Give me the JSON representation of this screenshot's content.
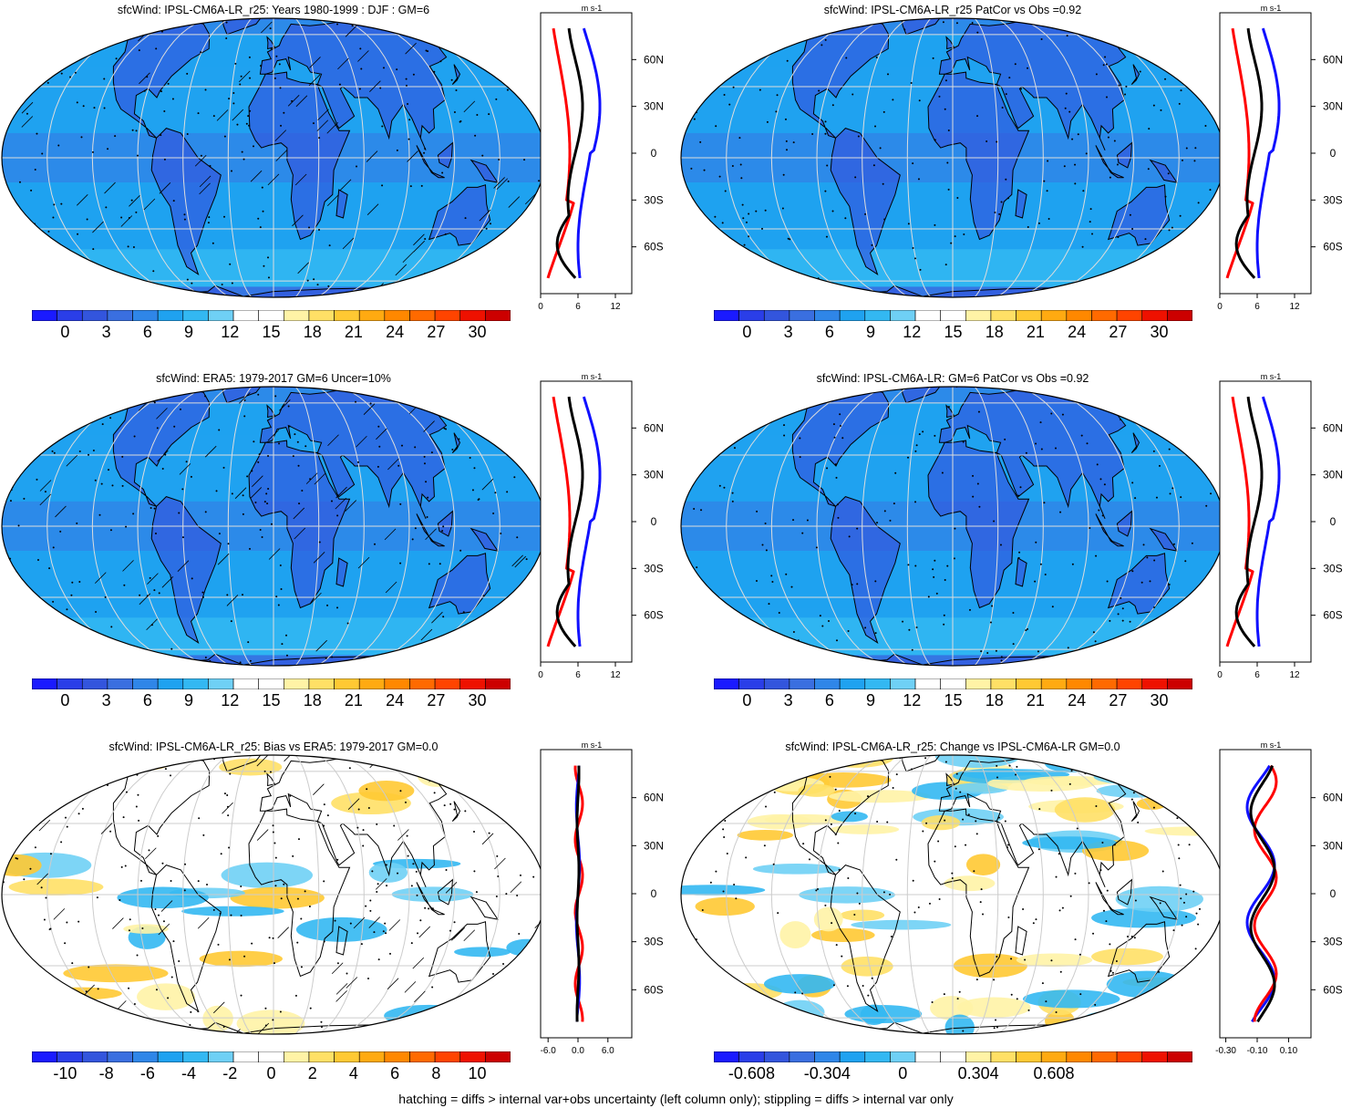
{
  "panels": [
    {
      "title": "sfcWind: IPSL-CM6A-LR_r25: Years 1980-1999 : DJF : GM=6",
      "kind": "mean",
      "hatch": true
    },
    {
      "title": "sfcWind: IPSL-CM6A-LR_r25 PatCor vs Obs =0.92",
      "kind": "mean",
      "hatch": false
    },
    {
      "title": "sfcWind: ERA5: 1979-2017 GM=6 Uncer=10%",
      "kind": "mean",
      "hatch": true
    },
    {
      "title": "sfcWind: IPSL-CM6A-LR: GM=6 PatCor vs Obs =0.92",
      "kind": "mean",
      "hatch": false
    },
    {
      "title": "sfcWind: IPSL-CM6A-LR_r25: Bias vs ERA5: 1979-2017 GM=0.0",
      "kind": "bias",
      "hatch": true
    },
    {
      "title": "sfcWind: IPSL-CM6A-LR_r25: Change vs IPSL-CM6A-LR GM=0.0",
      "kind": "change",
      "hatch": false
    }
  ],
  "colorbars": {
    "mean": [
      "0",
      "3",
      "6",
      "9",
      "12",
      "15",
      "18",
      "21",
      "24",
      "27",
      "30"
    ],
    "bias": [
      "-10",
      "-8",
      "-6",
      "-4",
      "-2",
      "0",
      "2",
      "4",
      "6",
      "8",
      "10"
    ],
    "change": [
      "-0.608",
      "-0.304",
      "0",
      "0.304",
      "0.608"
    ]
  },
  "colors": {
    "palette": [
      "#1a1aff",
      "#2a3ee8",
      "#3355dd",
      "#3a6fe0",
      "#2f86e8",
      "#1fa2f0",
      "#33b8f2",
      "#6fd0f5",
      "#ffffff",
      "#ffffff",
      "#fff3a6",
      "#ffe066",
      "#ffc933",
      "#ffaa11",
      "#ff8800",
      "#ff6a00",
      "#ff4400",
      "#ee1100",
      "#cc0000"
    ],
    "model": "#000000",
    "obs_red": "#ff0000",
    "obs_blue": "#1010ff"
  },
  "profile": {
    "unit": "m s-1",
    "lat_labels": [
      "60N",
      "30N",
      "0",
      "30S",
      "60S"
    ],
    "x_ticks_mean": [
      "0",
      "6",
      "12"
    ],
    "x_ticks_bias": [
      "-6.0",
      "0.0",
      "6.0"
    ],
    "x_ticks_change": [
      "-0.30",
      "-0.10",
      "0.10"
    ]
  },
  "footer": "hatching = diffs > internal var+obs uncertainty (left column only); stippling = diffs > internal var only"
}
